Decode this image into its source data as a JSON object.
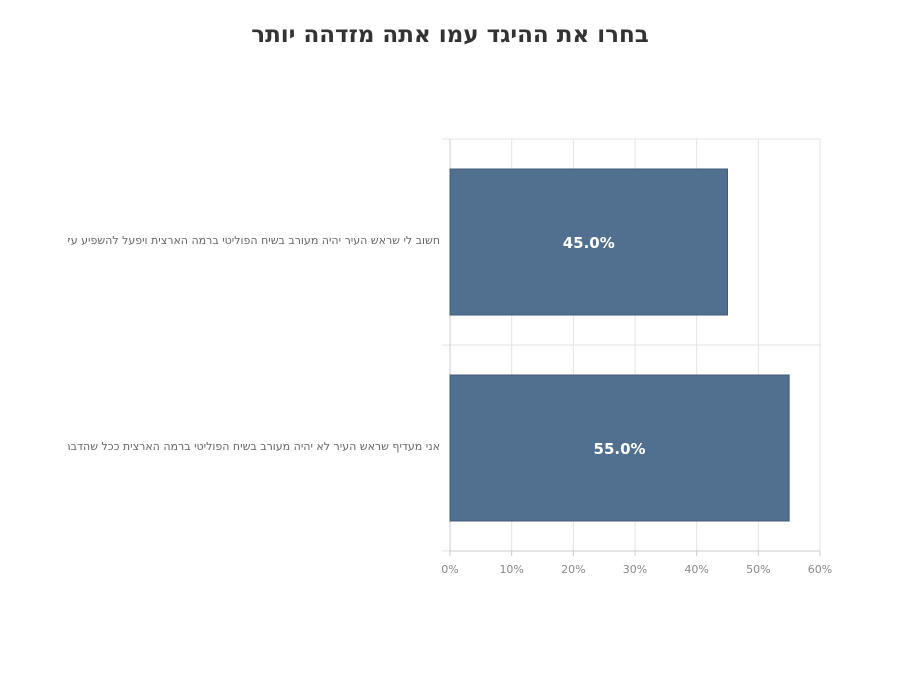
{
  "chart_data": {
    "type": "bar",
    "orientation": "horizontal",
    "title": "בחרו את ההיגד עמו אתה מזדהה יותר",
    "categories": [
      "חשוב לי שראש העיר יהיה מעורב בשיח הפוליטי ברמה הארצית ויפעל להשפיע על תה",
      "אני מעדיף שראש העיר לא יהיה מעורב בשיח הפוליטי ברמה הארצית ככל שהדבר על"
    ],
    "values": [
      45.0,
      55.0
    ],
    "data_labels": [
      "45.0%",
      "55.0%"
    ],
    "x_ticks": [
      "0%",
      "10%",
      "20%",
      "30%",
      "40%",
      "50%",
      "60%"
    ],
    "xlim": [
      0,
      60
    ],
    "xlabel": "",
    "ylabel": "",
    "grid": true,
    "legend": "none",
    "colors": {
      "bar": "#516f8f",
      "bar_stroke": "#3e5b7a",
      "data_label": "#ffffff",
      "grid": "#e3e3e3",
      "axis": "#cccccc",
      "tick_label": "#888888",
      "title": "#333333"
    }
  }
}
